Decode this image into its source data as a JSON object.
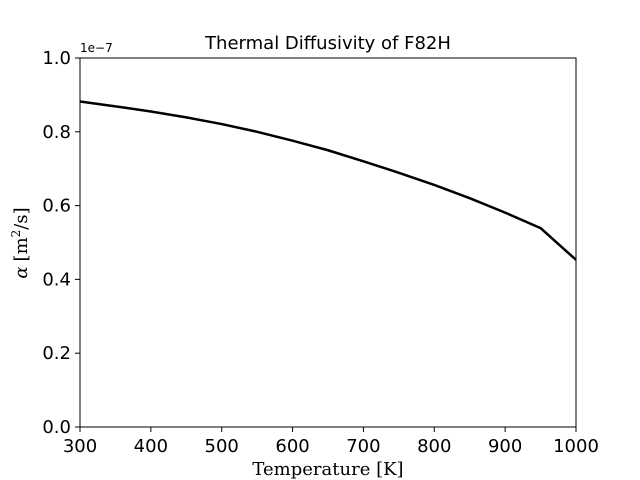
{
  "chart_data": {
    "type": "line",
    "title": "Thermal Diffusivity of F82H",
    "xlabel": "Temperature [K]",
    "ylabel": {
      "symbol": "α",
      "unit_prefix": "[m",
      "unit_exp": "2",
      "unit_suffix": "/s]"
    },
    "y_offset_text": "1e−7",
    "xlim": [
      300,
      1000
    ],
    "ylim": [
      0.0,
      1.0
    ],
    "xticks": [
      300,
      400,
      500,
      600,
      700,
      800,
      900,
      1000
    ],
    "yticks": [
      0.0,
      0.2,
      0.4,
      0.6,
      0.8,
      1.0
    ],
    "ytick_labels": [
      "0.0",
      "0.2",
      "0.4",
      "0.6",
      "0.8",
      "1.0"
    ],
    "grid": false,
    "series": [
      {
        "color": "#000000",
        "x": [
          300,
          350,
          400,
          450,
          500,
          550,
          600,
          650,
          700,
          750,
          800,
          850,
          900,
          950,
          1000
        ],
        "y": [
          0.882,
          0.869,
          0.855,
          0.839,
          0.821,
          0.8,
          0.776,
          0.75,
          0.72,
          0.689,
          0.656,
          0.62,
          0.581,
          0.539,
          0.453
        ]
      }
    ]
  }
}
